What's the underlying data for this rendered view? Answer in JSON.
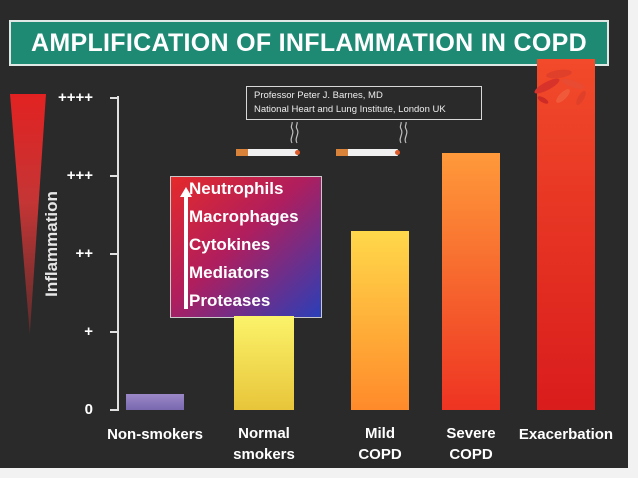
{
  "title": "AMPLIFICATION OF INFLAMMATION IN COPD",
  "credit": {
    "line1": "Professor Peter J. Barnes, MD",
    "line2": "National Heart and Lung Institute, London UK"
  },
  "inflammation_label": "Inflammation",
  "colors": {
    "title_bar": "#1e8a74",
    "background": "#2a2a2a",
    "wedge": "#e22222",
    "cells_box_top": "#e52a2a",
    "cells_box_bottom": "#2a3fb8"
  },
  "cells_box": {
    "items": [
      "Neutrophils",
      "Macrophages",
      "Cytokines",
      "Mediators",
      "Proteases"
    ],
    "arrow": "up-arrow"
  },
  "decorations": {
    "cigarette_count": 2,
    "exacerbation_flare": "flare-icon"
  },
  "chart_data": {
    "type": "bar",
    "categories": [
      "Non-smokers",
      "Normal smokers",
      "Mild COPD",
      "Severe COPD",
      "Exacerbation"
    ],
    "category_lines": [
      [
        "Non-smokers"
      ],
      [
        "Normal",
        "smokers"
      ],
      [
        "Mild",
        "COPD"
      ],
      [
        "Severe",
        "COPD"
      ],
      [
        "Exacerbation"
      ]
    ],
    "values": [
      0.2,
      1.2,
      2.3,
      3.3,
      4.5
    ],
    "bar_colors": [
      [
        "#9a88c8",
        "#7a68b0"
      ],
      [
        "#fbf36a",
        "#e8c53a"
      ],
      [
        "#ffd84a",
        "#ff8a2a"
      ],
      [
        "#ff9a3a",
        "#ee3322"
      ],
      [
        "#f24a2a",
        "#d91c1c"
      ]
    ],
    "ylim": [
      0,
      4
    ],
    "yticks": [
      {
        "value": 0,
        "label": "0"
      },
      {
        "value": 1,
        "label": "+"
      },
      {
        "value": 2,
        "label": "++"
      },
      {
        "value": 3,
        "label": "+++"
      },
      {
        "value": 4,
        "label": "++++"
      }
    ],
    "xlabel": "",
    "ylabel": "Inflammation"
  }
}
